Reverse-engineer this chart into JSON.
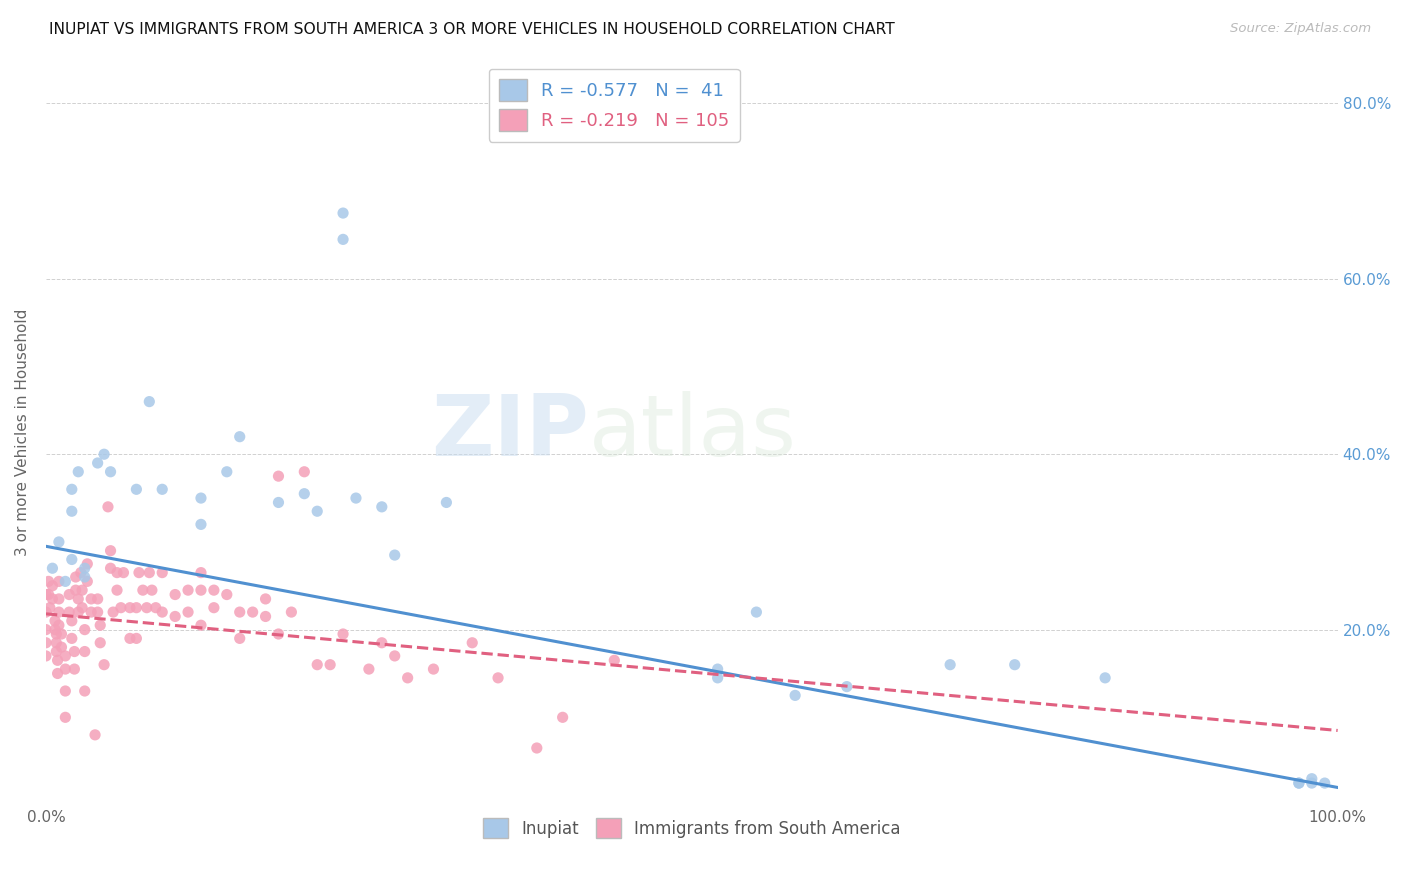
{
  "title": "INUPIAT VS IMMIGRANTS FROM SOUTH AMERICA 3 OR MORE VEHICLES IN HOUSEHOLD CORRELATION CHART",
  "source": "Source: ZipAtlas.com",
  "ylabel": "3 or more Vehicles in Household",
  "xlim": [
    0.0,
    1.0
  ],
  "ylim": [
    0.0,
    0.85
  ],
  "xticks": [
    0.0,
    0.2,
    0.4,
    0.6,
    0.8,
    1.0
  ],
  "xticklabels": [
    "0.0%",
    "",
    "",
    "",
    "",
    "100.0%"
  ],
  "yticks": [
    0.0,
    0.2,
    0.4,
    0.6,
    0.8
  ],
  "right_yticklabels": [
    "",
    "20.0%",
    "40.0%",
    "60.0%",
    "80.0%"
  ],
  "legend_r1": "R = -0.577",
  "legend_n1": "N =  41",
  "legend_r2": "R = -0.219",
  "legend_n2": "N = 105",
  "color_blue": "#a8c8e8",
  "color_pink": "#f4a0b8",
  "line_blue": "#5090d0",
  "line_pink": "#e06080",
  "watermark_zip": "ZIP",
  "watermark_atlas": "atlas",
  "blue_line_x0": 0.0,
  "blue_line_y0": 0.295,
  "blue_line_x1": 1.0,
  "blue_line_y1": 0.02,
  "pink_line_x0": 0.0,
  "pink_line_y0": 0.218,
  "pink_line_x1": 1.0,
  "pink_line_y1": 0.085,
  "blue_x": [
    0.005,
    0.01,
    0.015,
    0.02,
    0.02,
    0.02,
    0.025,
    0.03,
    0.03,
    0.04,
    0.045,
    0.05,
    0.07,
    0.08,
    0.09,
    0.12,
    0.12,
    0.14,
    0.15,
    0.18,
    0.2,
    0.21,
    0.23,
    0.23,
    0.24,
    0.26,
    0.27,
    0.31,
    0.52,
    0.52,
    0.55,
    0.58,
    0.62,
    0.7,
    0.75,
    0.82,
    0.97,
    0.97,
    0.98,
    0.98,
    0.99
  ],
  "blue_y": [
    0.27,
    0.3,
    0.255,
    0.28,
    0.335,
    0.36,
    0.38,
    0.26,
    0.27,
    0.39,
    0.4,
    0.38,
    0.36,
    0.46,
    0.36,
    0.35,
    0.32,
    0.38,
    0.42,
    0.345,
    0.355,
    0.335,
    0.645,
    0.675,
    0.35,
    0.34,
    0.285,
    0.345,
    0.145,
    0.155,
    0.22,
    0.125,
    0.135,
    0.16,
    0.16,
    0.145,
    0.025,
    0.025,
    0.025,
    0.03,
    0.025
  ],
  "pink_x": [
    0.0,
    0.0,
    0.0,
    0.0,
    0.0,
    0.002,
    0.002,
    0.003,
    0.005,
    0.005,
    0.007,
    0.007,
    0.008,
    0.008,
    0.008,
    0.009,
    0.009,
    0.01,
    0.01,
    0.01,
    0.01,
    0.012,
    0.012,
    0.015,
    0.015,
    0.015,
    0.015,
    0.018,
    0.018,
    0.02,
    0.02,
    0.022,
    0.022,
    0.023,
    0.023,
    0.025,
    0.025,
    0.027,
    0.028,
    0.028,
    0.03,
    0.03,
    0.03,
    0.032,
    0.032,
    0.035,
    0.035,
    0.038,
    0.04,
    0.04,
    0.042,
    0.042,
    0.045,
    0.048,
    0.05,
    0.05,
    0.052,
    0.055,
    0.055,
    0.058,
    0.06,
    0.065,
    0.065,
    0.07,
    0.07,
    0.072,
    0.075,
    0.078,
    0.08,
    0.082,
    0.085,
    0.09,
    0.09,
    0.1,
    0.1,
    0.11,
    0.11,
    0.12,
    0.12,
    0.12,
    0.13,
    0.13,
    0.14,
    0.15,
    0.15,
    0.16,
    0.17,
    0.17,
    0.18,
    0.18,
    0.19,
    0.2,
    0.21,
    0.22,
    0.23,
    0.25,
    0.26,
    0.27,
    0.28,
    0.3,
    0.33,
    0.35,
    0.38,
    0.4,
    0.44
  ],
  "pink_y": [
    0.24,
    0.22,
    0.2,
    0.185,
    0.17,
    0.255,
    0.24,
    0.225,
    0.25,
    0.235,
    0.21,
    0.2,
    0.195,
    0.185,
    0.175,
    0.165,
    0.15,
    0.255,
    0.235,
    0.22,
    0.205,
    0.195,
    0.18,
    0.17,
    0.155,
    0.13,
    0.1,
    0.24,
    0.22,
    0.21,
    0.19,
    0.175,
    0.155,
    0.26,
    0.245,
    0.235,
    0.22,
    0.265,
    0.245,
    0.225,
    0.2,
    0.175,
    0.13,
    0.275,
    0.255,
    0.235,
    0.22,
    0.08,
    0.235,
    0.22,
    0.205,
    0.185,
    0.16,
    0.34,
    0.29,
    0.27,
    0.22,
    0.265,
    0.245,
    0.225,
    0.265,
    0.225,
    0.19,
    0.225,
    0.19,
    0.265,
    0.245,
    0.225,
    0.265,
    0.245,
    0.225,
    0.265,
    0.22,
    0.24,
    0.215,
    0.245,
    0.22,
    0.265,
    0.245,
    0.205,
    0.245,
    0.225,
    0.24,
    0.22,
    0.19,
    0.22,
    0.235,
    0.215,
    0.195,
    0.375,
    0.22,
    0.38,
    0.16,
    0.16,
    0.195,
    0.155,
    0.185,
    0.17,
    0.145,
    0.155,
    0.185,
    0.145,
    0.065,
    0.1,
    0.165
  ]
}
